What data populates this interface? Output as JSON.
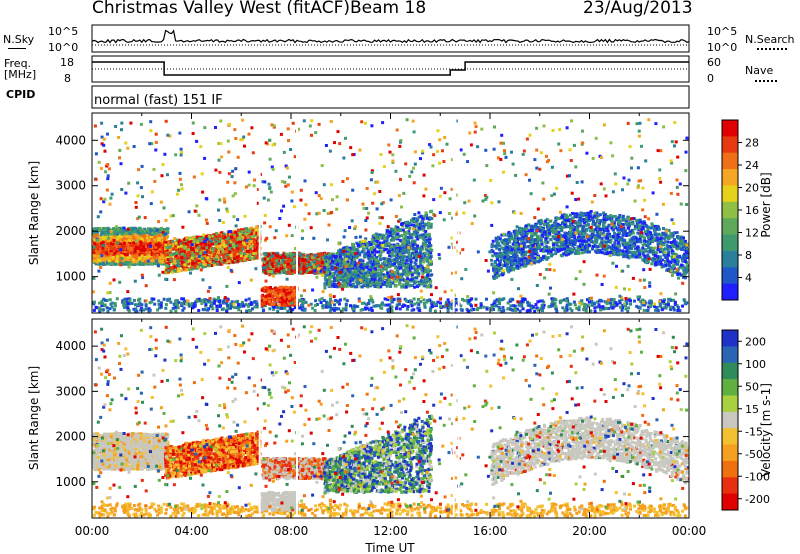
{
  "header": {
    "station": "Christmas Valley West (fitACF)",
    "beam": "Beam 18",
    "date": "23/Aug/2013"
  },
  "left_labels": {
    "nsky": "N.Sky",
    "freq_line1": "Freq.",
    "freq_line2": "[MHz]",
    "cpid": "CPID"
  },
  "right_labels": {
    "nsearch": "N.Search",
    "nave": "Nave"
  },
  "cpid_text": "normal (fast) 151 IF",
  "noise_axis": {
    "left_ticks": [
      "10^5",
      "10^0"
    ],
    "right_ticks": [
      "10^5",
      "10^0"
    ]
  },
  "freq_axis": {
    "left_ticks": [
      "18",
      "8"
    ],
    "right_ticks": [
      "60",
      "0"
    ]
  },
  "chart_data": [
    {
      "type": "heatmap",
      "title": "Power",
      "ylabel": "Slant Range [km]",
      "xlabel": "",
      "xlim": [
        0,
        24
      ],
      "ylim": [
        200,
        4600
      ],
      "y_ticks": [
        "1000",
        "2000",
        "3000",
        "4000"
      ],
      "colorbar": {
        "label": "Power [dB]",
        "ticks": [
          "4",
          "8",
          "12",
          "16",
          "20",
          "24",
          "28"
        ],
        "colors": [
          "#1e1eff",
          "#1f56c8",
          "#2a7f9b",
          "#3e9a6d",
          "#5fa95a",
          "#8fbf45",
          "#e6d21a",
          "#f5a623",
          "#f07018",
          "#e83a10",
          "#e00000"
        ]
      }
    },
    {
      "type": "heatmap",
      "title": "Velocity",
      "ylabel": "Slant Range [km]",
      "xlabel": "Time UT",
      "xlim": [
        0,
        24
      ],
      "ylim": [
        200,
        4600
      ],
      "y_ticks": [
        "1000",
        "2000",
        "3000",
        "4000"
      ],
      "x_ticks": [
        "00:00",
        "04:00",
        "08:00",
        "12:00",
        "16:00",
        "20:00",
        "00:00"
      ],
      "colorbar": {
        "label": "Velocity [m s-1]",
        "ticks": [
          "200",
          "100",
          "50",
          "15",
          "-15",
          "-50",
          "-100",
          "-200"
        ],
        "colors": [
          "#1e32c8",
          "#2a64b4",
          "#2f8c5a",
          "#5fb040",
          "#a8d040",
          "#c8c8c0",
          "#f5c030",
          "#f5a020",
          "#f07010",
          "#e83010",
          "#e00000"
        ]
      }
    }
  ]
}
